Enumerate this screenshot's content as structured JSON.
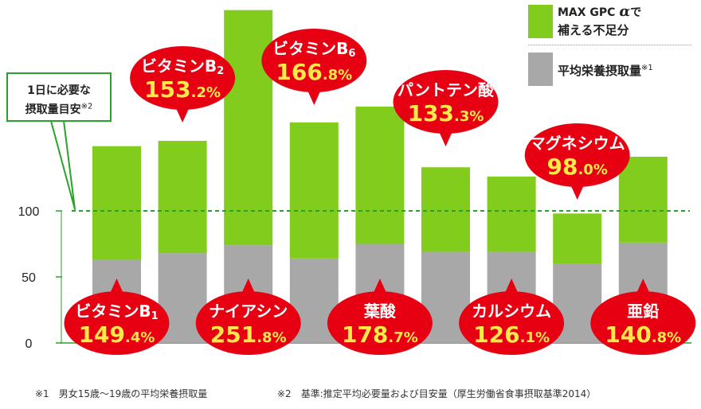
{
  "chart_data": {
    "type": "bar",
    "stacked": true,
    "categories": [
      "ビタミンB1",
      "ビタミンB2",
      "ナイアシン",
      "ビタミンB6",
      "葉酸",
      "パントテン酸",
      "カルシウム",
      "マグネシウム",
      "亜鉛"
    ],
    "series": [
      {
        "name": "平均栄養摂取量",
        "color": "#a8a8a8",
        "values": [
          63,
          68,
          74,
          64,
          75,
          69,
          69,
          60,
          76
        ]
      },
      {
        "name": "MAX GPC αで補える不足分",
        "color": "#82cc1e",
        "values": [
          86,
          85,
          178,
          103,
          104,
          64,
          57,
          38,
          65
        ]
      }
    ],
    "totals_label": [
      "149.4%",
      "153.2%",
      "251.8%",
      "166.8%",
      "178.7%",
      "133.3%",
      "126.1%",
      "98.0%",
      "140.8%"
    ],
    "balloon_names": [
      {
        "main": "ビタミンB",
        "sub": "1"
      },
      {
        "main": "ビタミンB",
        "sub": "2"
      },
      {
        "main": "ナイアシン",
        "sub": ""
      },
      {
        "main": "ビタミンB",
        "sub": "6"
      },
      {
        "main": "葉酸",
        "sub": ""
      },
      {
        "main": "パントテン酸",
        "sub": ""
      },
      {
        "main": "カルシウム",
        "sub": ""
      },
      {
        "main": "マグネシウム",
        "sub": ""
      },
      {
        "main": "亜鉛",
        "sub": ""
      }
    ],
    "balloon_values": [
      {
        "int": "149",
        "dec": ".4%"
      },
      {
        "int": "153",
        "dec": ".2%"
      },
      {
        "int": "251",
        "dec": ".8%"
      },
      {
        "int": "166",
        "dec": ".8%"
      },
      {
        "int": "178",
        "dec": ".7%"
      },
      {
        "int": "133",
        "dec": ".3%"
      },
      {
        "int": "126",
        "dec": ".1%"
      },
      {
        "int": "98",
        "dec": ".0%"
      },
      {
        "int": "140",
        "dec": ".8%"
      }
    ],
    "balloon_positions": [
      "bottom",
      "top",
      "bottom",
      "top",
      "bottom",
      "top",
      "bottom",
      "top",
      "bottom"
    ],
    "ylim": [
      0,
      260
    ],
    "yticks": [
      0,
      50,
      100
    ],
    "reference_line": 100,
    "reference_color": "#2aa22a",
    "balloon_color": "#e60012"
  },
  "legend": {
    "supplement_line1": "MAX GPC ",
    "supplement_alpha": "α",
    "supplement_line1_end": "で",
    "supplement_line2": "補える不足分",
    "average": "平均栄養摂取量",
    "average_note": "※1"
  },
  "reference_box": {
    "line1": "1日に必要な",
    "line2": "摂取量目安",
    "note": "※2"
  },
  "footnotes": {
    "note1": "※1　男女15歳～19歳の平均栄養摂取量",
    "note2": "※2　基準:推定平均必要量および目安量（厚生労働省食事摂取基準2014）"
  }
}
